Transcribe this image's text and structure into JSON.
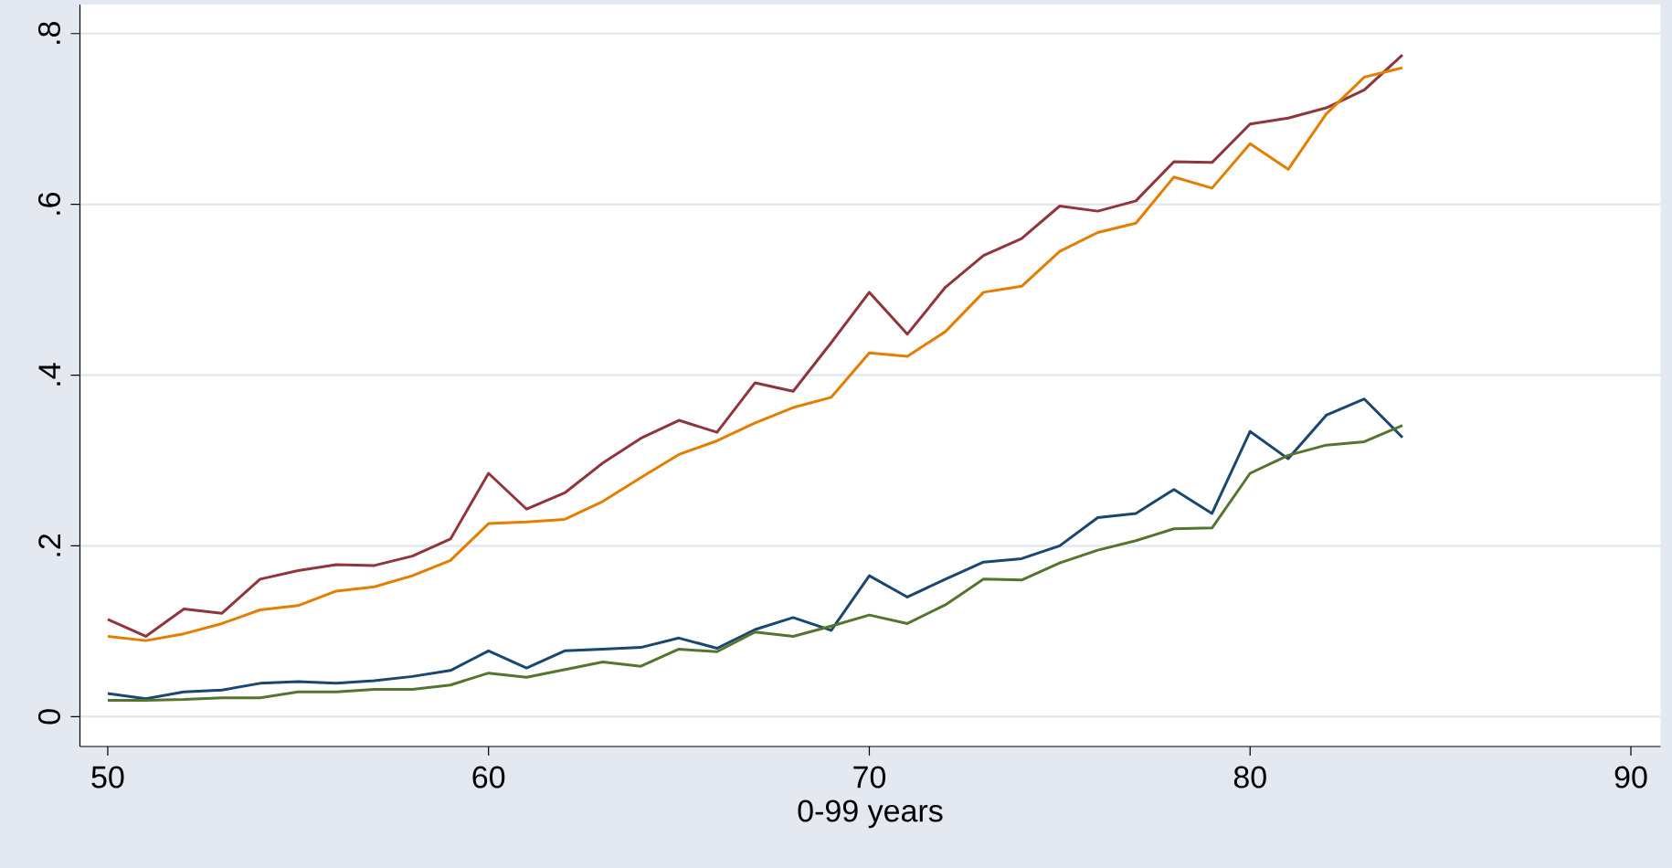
{
  "chart_data": {
    "type": "line",
    "xlabel": "0-99 years",
    "x": [
      50,
      51,
      52,
      53,
      54,
      55,
      56,
      57,
      58,
      59,
      60,
      61,
      62,
      63,
      64,
      65,
      66,
      67,
      68,
      69,
      70,
      71,
      72,
      73,
      74,
      75,
      76,
      77,
      78,
      79,
      80,
      81,
      82,
      83,
      84
    ],
    "series": [
      {
        "color": "#90353b",
        "values": [
          0.114,
          0.094,
          0.126,
          0.121,
          0.161,
          0.171,
          0.178,
          0.177,
          0.188,
          0.208,
          0.285,
          0.243,
          0.262,
          0.297,
          0.326,
          0.347,
          0.333,
          0.391,
          0.381,
          0.438,
          0.497,
          0.448,
          0.503,
          0.54,
          0.56,
          0.598,
          0.592,
          0.604,
          0.65,
          0.649,
          0.694,
          0.701,
          0.713,
          0.734,
          0.775
        ]
      },
      {
        "color": "#e37e00",
        "values": [
          0.094,
          0.089,
          0.097,
          0.109,
          0.125,
          0.13,
          0.147,
          0.152,
          0.165,
          0.183,
          0.226,
          0.228,
          0.231,
          0.252,
          0.28,
          0.307,
          0.323,
          0.344,
          0.362,
          0.374,
          0.426,
          0.422,
          0.451,
          0.497,
          0.504,
          0.545,
          0.567,
          0.578,
          0.632,
          0.619,
          0.671,
          0.641,
          0.706,
          0.749,
          0.76
        ]
      },
      {
        "color": "#1a476f",
        "values": [
          0.027,
          0.021,
          0.029,
          0.031,
          0.039,
          0.041,
          0.039,
          0.042,
          0.047,
          0.054,
          0.077,
          0.057,
          0.077,
          0.079,
          0.081,
          0.092,
          0.08,
          0.102,
          0.116,
          0.101,
          0.165,
          0.14,
          0.161,
          0.181,
          0.185,
          0.2,
          0.233,
          0.238,
          0.266,
          0.238,
          0.334,
          0.302,
          0.353,
          0.372,
          0.327
        ]
      },
      {
        "color": "#55752f",
        "values": [
          0.019,
          0.019,
          0.02,
          0.022,
          0.022,
          0.029,
          0.029,
          0.032,
          0.032,
          0.037,
          0.051,
          0.046,
          0.055,
          0.064,
          0.059,
          0.079,
          0.076,
          0.099,
          0.094,
          0.106,
          0.119,
          0.109,
          0.131,
          0.161,
          0.16,
          0.18,
          0.195,
          0.206,
          0.22,
          0.221,
          0.285,
          0.306,
          0.318,
          0.322,
          0.341
        ]
      }
    ],
    "xlim": [
      49.27,
      90.78
    ],
    "ylim": [
      -0.035,
      0.834
    ],
    "xticks": [
      50,
      60,
      70,
      80,
      90
    ],
    "yticks": [
      0,
      {
        "value": 0.2,
        "label": ".2"
      },
      {
        "value": 0.4,
        "label": ".4"
      },
      {
        "value": 0.6,
        "label": ".6"
      },
      {
        "value": 0.8,
        "label": ".8"
      }
    ],
    "grid": "y",
    "marker": "none",
    "line_style": "solid"
  }
}
